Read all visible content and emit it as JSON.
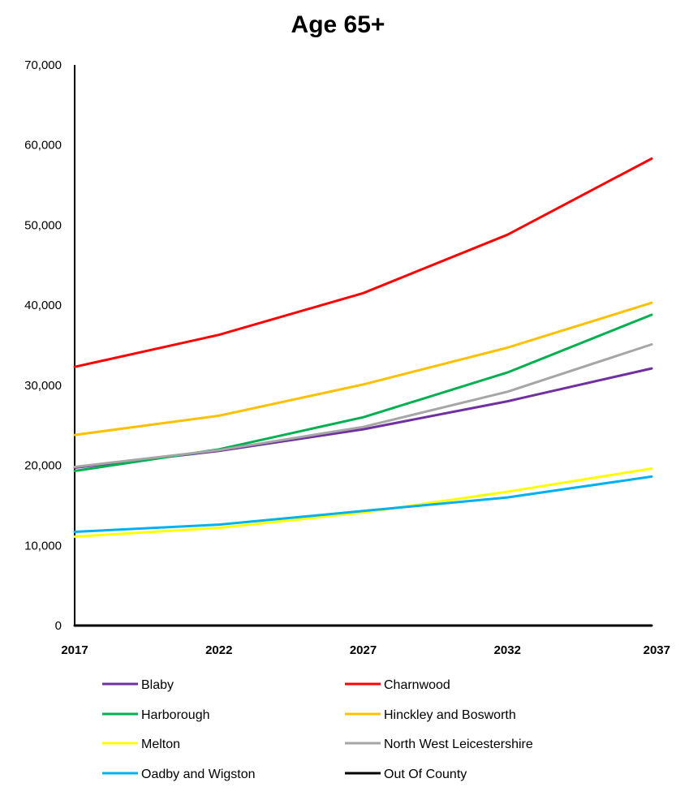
{
  "chart_data": {
    "type": "line",
    "title": "Age 65+",
    "xlabel": "",
    "ylabel": "",
    "x": [
      "2017",
      "2022",
      "2027",
      "2032",
      "2037"
    ],
    "ylim": [
      0,
      70000
    ],
    "yticks": [
      0,
      10000,
      20000,
      30000,
      40000,
      50000,
      60000,
      70000
    ],
    "ytick_labels": [
      "0",
      "10,000",
      "20,000",
      "30,000",
      "40,000",
      "50,000",
      "60,000",
      "70,000"
    ],
    "grid": false,
    "legend_position": "bottom",
    "series": [
      {
        "name": "Blaby",
        "color": "#7030a0",
        "values": [
          19700,
          21800,
          24500,
          28000,
          32100
        ]
      },
      {
        "name": "Charnwood",
        "color": "#ff0000",
        "values": [
          32300,
          36300,
          41500,
          48800,
          58300
        ]
      },
      {
        "name": "Harborough",
        "color": "#00b050",
        "values": [
          19300,
          22000,
          26000,
          31600,
          38800
        ]
      },
      {
        "name": "Hinckley and Bosworth",
        "color": "#ffc000",
        "values": [
          23800,
          26200,
          30100,
          34700,
          40300
        ]
      },
      {
        "name": "Melton",
        "color": "#ffff00",
        "values": [
          11100,
          12200,
          14100,
          16700,
          19600
        ]
      },
      {
        "name": "North West Leicestershire",
        "color": "#a6a6a6",
        "values": [
          19800,
          21900,
          24800,
          29200,
          35100
        ]
      },
      {
        "name": "Oadby and Wigston",
        "color": "#00b0f0",
        "values": [
          11700,
          12600,
          14300,
          16000,
          18600
        ]
      },
      {
        "name": "Out Of County",
        "color": "#000000",
        "values": [
          0,
          0,
          0,
          0,
          0
        ]
      }
    ]
  }
}
